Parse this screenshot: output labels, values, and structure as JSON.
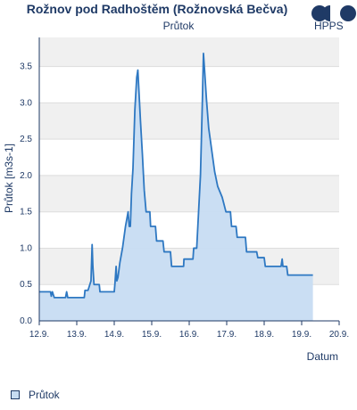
{
  "chart_data": {
    "type": "area",
    "title": "Rožnov pod Radhoštěm (Rožnovská Bečva)",
    "subtitle": "Průtok",
    "xlabel": "Datum",
    "ylabel": "Průtok [m3s-1]",
    "xlim": [
      12.9,
      20.9
    ],
    "ylim": [
      0,
      3.9
    ],
    "x_ticks": [
      {
        "value": 12.9,
        "label": "12.9."
      },
      {
        "value": 13.9,
        "label": "13.9."
      },
      {
        "value": 14.9,
        "label": "14.9."
      },
      {
        "value": 15.9,
        "label": "15.9."
      },
      {
        "value": 16.9,
        "label": "16.9."
      },
      {
        "value": 17.9,
        "label": "17.9."
      },
      {
        "value": 18.9,
        "label": "18.9."
      },
      {
        "value": 19.9,
        "label": "19.9."
      },
      {
        "value": 20.9,
        "label": "20.9."
      }
    ],
    "y_ticks": [
      {
        "value": 0.0,
        "label": "0.0"
      },
      {
        "value": 0.5,
        "label": "0.5"
      },
      {
        "value": 1.0,
        "label": "1.0"
      },
      {
        "value": 1.5,
        "label": "1.5"
      },
      {
        "value": 2.0,
        "label": "2.0"
      },
      {
        "value": 2.5,
        "label": "2.5"
      },
      {
        "value": 3.0,
        "label": "3.0"
      },
      {
        "value": 3.5,
        "label": "3.5"
      }
    ],
    "grid": true,
    "legend": "bottom-left",
    "colors": {
      "line": "#2e78c2",
      "fill": "#c7dcf2",
      "axis": "#1f3a66",
      "band": "#f0f0f0",
      "grid": "#dddddd"
    },
    "series": [
      {
        "name": "Průtok",
        "points": [
          [
            12.9,
            0.4
          ],
          [
            13.2,
            0.4
          ],
          [
            13.22,
            0.34
          ],
          [
            13.25,
            0.4
          ],
          [
            13.3,
            0.32
          ],
          [
            13.6,
            0.32
          ],
          [
            13.63,
            0.4
          ],
          [
            13.66,
            0.32
          ],
          [
            14.1,
            0.32
          ],
          [
            14.12,
            0.42
          ],
          [
            14.2,
            0.42
          ],
          [
            14.28,
            0.55
          ],
          [
            14.31,
            1.05
          ],
          [
            14.33,
            0.75
          ],
          [
            14.36,
            0.5
          ],
          [
            14.5,
            0.5
          ],
          [
            14.52,
            0.4
          ],
          [
            14.9,
            0.4
          ],
          [
            14.92,
            0.52
          ],
          [
            14.95,
            0.75
          ],
          [
            14.97,
            0.55
          ],
          [
            15.0,
            0.6
          ],
          [
            15.05,
            0.8
          ],
          [
            15.12,
            1.0
          ],
          [
            15.2,
            1.3
          ],
          [
            15.27,
            1.5
          ],
          [
            15.3,
            1.3
          ],
          [
            15.33,
            1.3
          ],
          [
            15.36,
            1.75
          ],
          [
            15.4,
            2.1
          ],
          [
            15.45,
            2.9
          ],
          [
            15.5,
            3.35
          ],
          [
            15.53,
            3.45
          ],
          [
            15.56,
            3.15
          ],
          [
            15.6,
            2.75
          ],
          [
            15.65,
            2.3
          ],
          [
            15.7,
            1.8
          ],
          [
            15.75,
            1.5
          ],
          [
            15.85,
            1.5
          ],
          [
            15.87,
            1.3
          ],
          [
            16.0,
            1.3
          ],
          [
            16.03,
            1.1
          ],
          [
            16.2,
            1.1
          ],
          [
            16.23,
            0.95
          ],
          [
            16.4,
            0.95
          ],
          [
            16.43,
            0.75
          ],
          [
            16.6,
            0.75
          ],
          [
            16.75,
            0.75
          ],
          [
            16.76,
            0.85
          ],
          [
            17.0,
            0.85
          ],
          [
            17.02,
            1.0
          ],
          [
            17.1,
            1.0
          ],
          [
            17.13,
            1.3
          ],
          [
            17.2,
            2.0
          ],
          [
            17.25,
            3.0
          ],
          [
            17.28,
            3.68
          ],
          [
            17.31,
            3.45
          ],
          [
            17.36,
            3.05
          ],
          [
            17.42,
            2.65
          ],
          [
            17.5,
            2.35
          ],
          [
            17.58,
            2.05
          ],
          [
            17.66,
            1.85
          ],
          [
            17.78,
            1.7
          ],
          [
            17.88,
            1.5
          ],
          [
            18.0,
            1.5
          ],
          [
            18.03,
            1.3
          ],
          [
            18.15,
            1.3
          ],
          [
            18.18,
            1.15
          ],
          [
            18.4,
            1.15
          ],
          [
            18.43,
            0.95
          ],
          [
            18.7,
            0.95
          ],
          [
            18.73,
            0.87
          ],
          [
            18.9,
            0.87
          ],
          [
            18.93,
            0.75
          ],
          [
            19.1,
            0.75
          ],
          [
            19.35,
            0.75
          ],
          [
            19.38,
            0.85
          ],
          [
            19.4,
            0.75
          ],
          [
            19.5,
            0.75
          ],
          [
            19.53,
            0.63
          ],
          [
            19.9,
            0.63
          ],
          [
            20.2,
            0.63
          ]
        ]
      }
    ]
  },
  "legend_items": [
    {
      "label": "Průtok"
    }
  ],
  "logo": {
    "text": "HPPS"
  }
}
